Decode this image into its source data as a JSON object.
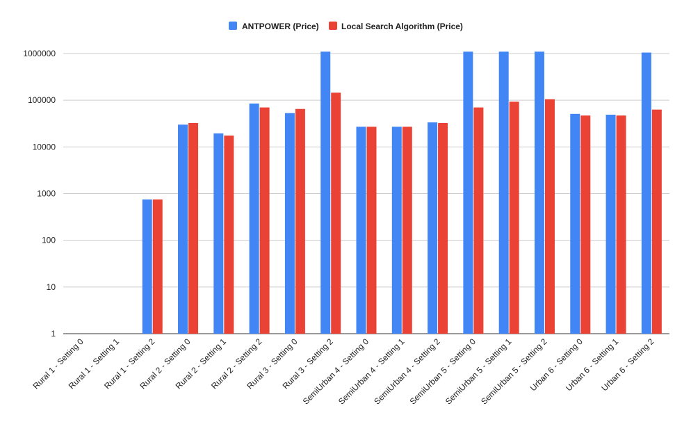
{
  "chart_data": {
    "type": "bar",
    "title": "",
    "xlabel": "",
    "ylabel": "",
    "scale": "log",
    "ylim": [
      1,
      1000000
    ],
    "yticks": [
      "1",
      "10",
      "100",
      "1000",
      "10000",
      "100000",
      "1000000"
    ],
    "grid": true,
    "legend_position": "top-center",
    "categories": [
      "Rural 1 - Setting 0",
      "Rural 1 - Setting 1",
      "Rural 1 - Setting 2",
      "Rural 2 - Setting 0",
      "Rural 2 - Setting 1",
      "Rural 2 - Setting 2",
      "Rural 3 - Setting 0",
      "Rural 3 - Setting 2",
      "SemiUrban 4 - Setting 0",
      "SemiUrban 4 - Setting 1",
      "SemiUrban 4 - Setting 2",
      "SemiUrban 5 - Setting 0",
      "SemiUrban 5 - Setting 1",
      "SemiUrban 5 - Setting 2",
      "Urban 6 - Setting 0",
      "Urban 6 - Setting 1",
      "Urban 6 - Setting 2"
    ],
    "series": [
      {
        "name": "ANTPOWER (Price)",
        "color": "#4285f4",
        "values": [
          null,
          null,
          750,
          30000,
          19500,
          85000,
          53000,
          1300000,
          27000,
          27000,
          33500,
          1300000,
          1300000,
          1300000,
          51000,
          49000,
          1050000
        ]
      },
      {
        "name": "Local Search Algorithm (Price)",
        "color": "#ea4335",
        "values": [
          null,
          null,
          750,
          32500,
          17500,
          70000,
          65000,
          145000,
          27000,
          27000,
          32500,
          70000,
          93000,
          105000,
          47000,
          47000,
          63000
        ]
      }
    ]
  }
}
